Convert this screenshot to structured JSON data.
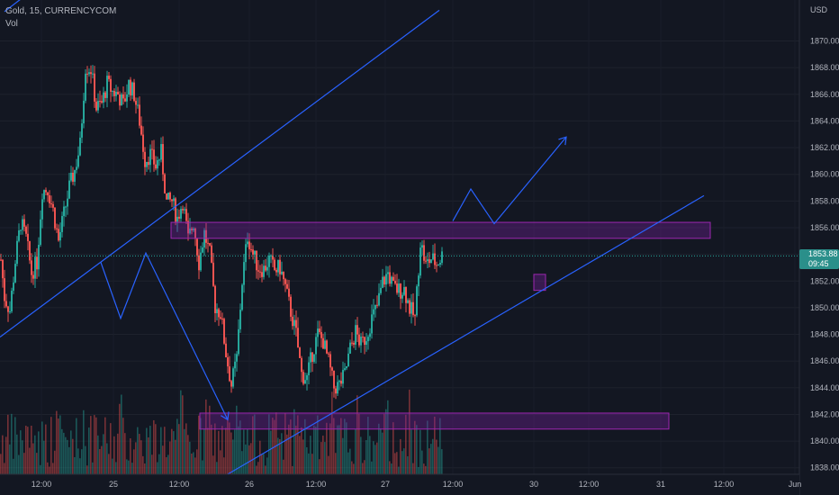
{
  "header": {
    "symbol_line": "Gold, 15, CURRENCYCOM",
    "volume_label": "Vol"
  },
  "price_badge": {
    "price": "1853.88",
    "countdown": "09:45"
  },
  "colors": {
    "background": "#131722",
    "up_candle": "#26a69a",
    "down_candle": "#ef5350",
    "trendline": "#2962ff",
    "zone_border": "#9c27b0",
    "zone_fill": "#7b1fa2",
    "axis_text": "#b2b5be"
  },
  "chart_data": {
    "type": "candlestick",
    "currency": "USD",
    "y_axis": {
      "min": 1837.5,
      "max": 1872,
      "ticks": [
        "1838.00",
        "1840.00",
        "1842.00",
        "1844.00",
        "1846.00",
        "1848.00",
        "1850.00",
        "1852.00",
        "1854.00",
        "1856.00",
        "1858.00",
        "1860.00",
        "1862.00",
        "1864.00",
        "1866.00",
        "1868.00",
        "1870.00"
      ]
    },
    "x_axis": {
      "ticks": [
        "12:00",
        "25",
        "12:00",
        "26",
        "12:00",
        "27",
        "12:00",
        "30",
        "12:00",
        "31",
        "12:00",
        "Jun"
      ]
    },
    "current_price": 1853.88,
    "price_path": [
      [
        0,
        1853.6
      ],
      [
        4,
        1850.8
      ],
      [
        10,
        1849.8
      ],
      [
        16,
        1853.5
      ],
      [
        22,
        1856.4
      ],
      [
        28,
        1855.2
      ],
      [
        34,
        1852.6
      ],
      [
        40,
        1853.4
      ],
      [
        46,
        1858.8
      ],
      [
        52,
        1858.9
      ],
      [
        58,
        1857.3
      ],
      [
        64,
        1855.0
      ],
      [
        70,
        1857.0
      ],
      [
        76,
        1859.0
      ],
      [
        82,
        1860.3
      ],
      [
        88,
        1862.2
      ],
      [
        94,
        1868.1
      ],
      [
        100,
        1867.9
      ],
      [
        106,
        1865.0
      ],
      [
        112,
        1865.3
      ],
      [
        118,
        1866.8
      ],
      [
        124,
        1866.2
      ],
      [
        130,
        1866.0
      ],
      [
        136,
        1865.2
      ],
      [
        142,
        1866.8
      ],
      [
        148,
        1866.0
      ],
      [
        154,
        1864.0
      ],
      [
        160,
        1861.1
      ],
      [
        166,
        1861.5
      ],
      [
        172,
        1860.6
      ],
      [
        178,
        1861.6
      ],
      [
        184,
        1857.9
      ],
      [
        190,
        1858.0
      ],
      [
        196,
        1856.7
      ],
      [
        202,
        1858.0
      ],
      [
        208,
        1855.1
      ],
      [
        214,
        1856.4
      ],
      [
        220,
        1853.4
      ],
      [
        226,
        1855.6
      ],
      [
        232,
        1854.0
      ],
      [
        238,
        1850.1
      ],
      [
        244,
        1849.6
      ],
      [
        250,
        1846.6
      ],
      [
        256,
        1844.2
      ],
      [
        262,
        1846.2
      ],
      [
        268,
        1852.0
      ],
      [
        274,
        1855.4
      ],
      [
        280,
        1854.0
      ],
      [
        286,
        1853.0
      ],
      [
        292,
        1852.9
      ],
      [
        298,
        1853.6
      ],
      [
        304,
        1852.8
      ],
      [
        310,
        1853.0
      ],
      [
        316,
        1851.5
      ],
      [
        322,
        1849.7
      ],
      [
        328,
        1848.0
      ],
      [
        334,
        1845.0
      ],
      [
        340,
        1844.7
      ],
      [
        346,
        1846.6
      ],
      [
        352,
        1848.0
      ],
      [
        358,
        1847.5
      ],
      [
        364,
        1845.9
      ],
      [
        370,
        1844.0
      ],
      [
        376,
        1844.2
      ],
      [
        382,
        1845.0
      ],
      [
        388,
        1846.9
      ],
      [
        394,
        1848.2
      ],
      [
        400,
        1847.2
      ],
      [
        406,
        1847.9
      ],
      [
        412,
        1849.2
      ],
      [
        418,
        1850.1
      ],
      [
        424,
        1851.9
      ],
      [
        430,
        1852.6
      ],
      [
        436,
        1851.5
      ],
      [
        442,
        1851.3
      ],
      [
        448,
        1851.4
      ],
      [
        454,
        1850.0
      ],
      [
        460,
        1849.2
      ],
      [
        466,
        1855.0
      ],
      [
        472,
        1853.2
      ],
      [
        478,
        1853.7
      ],
      [
        484,
        1853.3
      ],
      [
        490,
        1853.9
      ]
    ],
    "zones": [
      {
        "x1": 190,
        "x2": 789,
        "y_top": 1856.4,
        "y_bottom": 1855.2
      },
      {
        "x1": 222,
        "x2": 743,
        "y_top": 1842.1,
        "y_bottom": 1840.9
      },
      {
        "x1": 593,
        "x2": 606,
        "y_top": 1852.5,
        "y_bottom": 1851.3
      }
    ],
    "trendlines": [
      [
        [
          0,
          1847.8
        ],
        [
          488,
          1872.3
        ]
      ],
      [
        [
          5,
          1872.2
        ],
        [
          55,
          1874.8
        ]
      ],
      [
        [
          245,
          1837.2
        ],
        [
          782,
          1858.4
        ]
      ]
    ],
    "projection_paths": [
      [
        [
          112,
          1853.4
        ],
        [
          134,
          1849.2
        ],
        [
          162,
          1854.1
        ],
        [
          253,
          1841.6
        ]
      ],
      [
        [
          503,
          1856.5
        ],
        [
          523,
          1858.9
        ],
        [
          549,
          1856.3
        ],
        [
          629,
          1862.8
        ]
      ]
    ]
  }
}
